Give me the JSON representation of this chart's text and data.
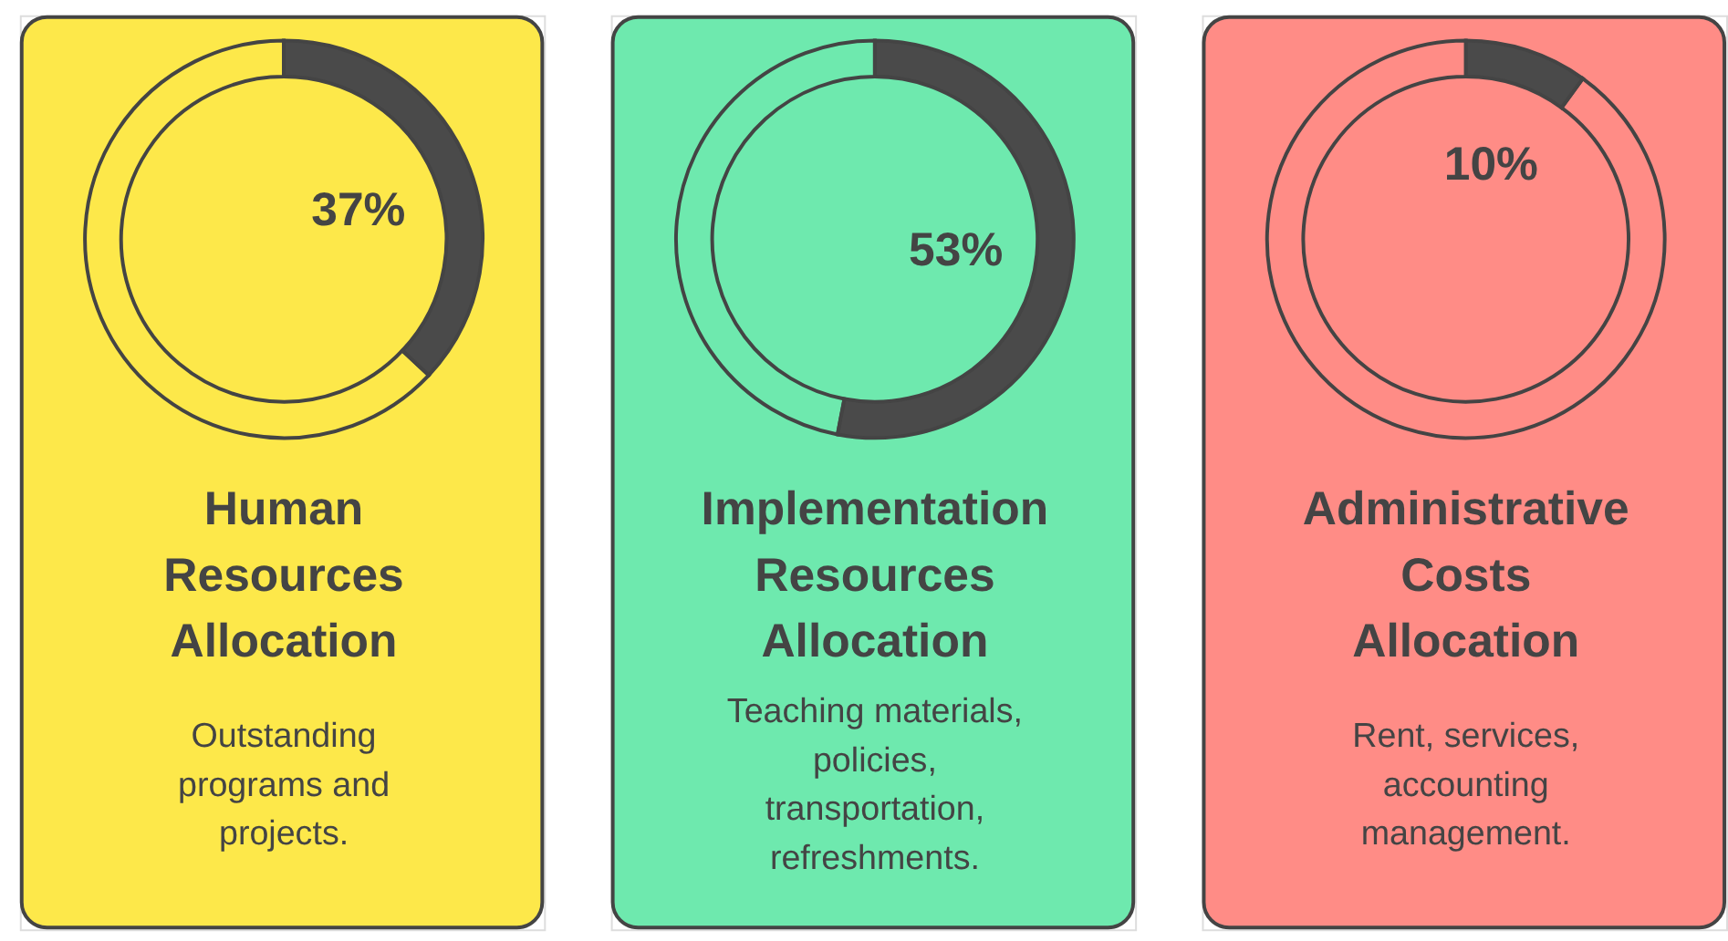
{
  "chart_data": [
    {
      "type": "donut",
      "title": "Human Resources Allocation",
      "categories": [
        null,
        null
      ],
      "values": [
        37,
        63
      ],
      "colors": [
        "#4a4a4a",
        "#fde84a"
      ],
      "value_labels": [
        "37%",
        null
      ],
      "annotations": [
        "Outstanding programs and projects."
      ]
    },
    {
      "type": "donut",
      "title": "Implementation Resources Allocation",
      "categories": [
        null,
        null
      ],
      "values": [
        53,
        47
      ],
      "colors": [
        "#4a4a4a",
        "#6ee9ae"
      ],
      "value_labels": [
        "53%",
        null
      ],
      "annotations": [
        "Teaching materials, policies, transportation, refreshments."
      ]
    },
    {
      "type": "donut",
      "title": "Administrative Costs Allocation",
      "categories": [
        null,
        null
      ],
      "values": [
        10,
        90
      ],
      "colors": [
        "#4a4a4a",
        "#ff8c86"
      ],
      "value_labels": [
        "10%",
        null
      ],
      "annotations": [
        "Rent, services, accounting management."
      ]
    }
  ]
}
